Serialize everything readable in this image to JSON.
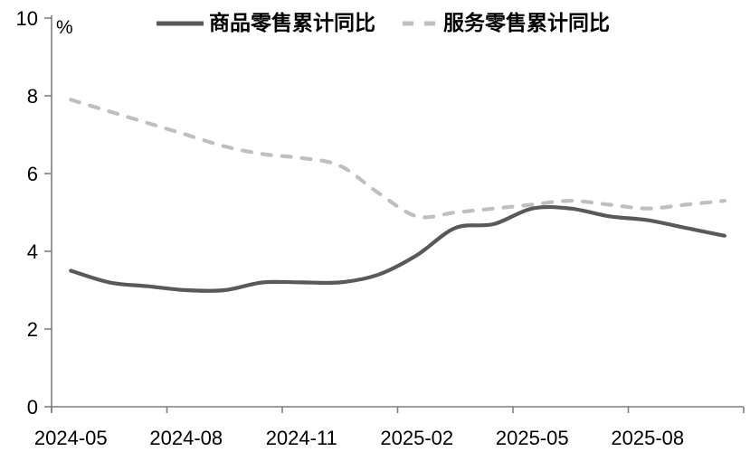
{
  "chart_data": {
    "type": "line",
    "title": "",
    "grid": false,
    "legend_position": "top-center",
    "y_axis": {
      "unit": "%",
      "min": 0,
      "max": 10,
      "ticks": [
        0,
        2,
        4,
        6,
        8,
        10
      ]
    },
    "x_axis": {
      "tick_labels": [
        "2024-05",
        "2024-08",
        "2024-11",
        "2025-02",
        "2025-05",
        "2025-08"
      ],
      "label_every": 3
    },
    "categories": [
      "2024-05",
      "2024-06",
      "2024-07",
      "2024-08",
      "2024-09",
      "2024-10",
      "2024-11",
      "2024-12",
      "2025-01",
      "2025-02",
      "2025-03",
      "2025-04",
      "2025-05",
      "2025-06",
      "2025-07",
      "2025-08",
      "2025-09",
      "2025-10"
    ],
    "series": [
      {
        "name": "商品零售累计同比",
        "line_style": "solid",
        "color": "#595959",
        "values": [
          3.5,
          3.2,
          3.1,
          3.0,
          3.0,
          3.2,
          3.2,
          3.2,
          3.4,
          3.9,
          4.6,
          4.7,
          5.1,
          5.1,
          4.9,
          4.8,
          4.6,
          4.4
        ]
      },
      {
        "name": "服务零售累计同比",
        "line_style": "dashed",
        "color": "#bfbfbf",
        "values": [
          7.9,
          7.6,
          7.3,
          7.0,
          6.7,
          6.5,
          6.4,
          6.2,
          5.5,
          4.9,
          5.0,
          5.1,
          5.2,
          5.3,
          5.2,
          5.1,
          5.2,
          5.3
        ]
      }
    ]
  },
  "colors": {
    "axis": "#7f7f7f",
    "text": "#000000",
    "background": "#ffffff"
  }
}
